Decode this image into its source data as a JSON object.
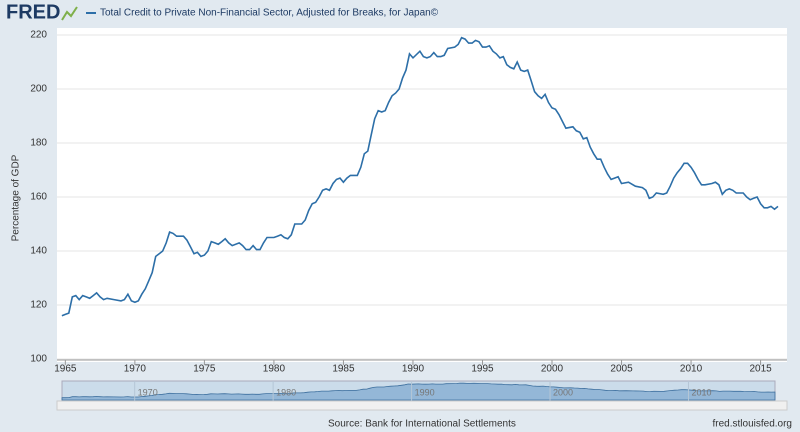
{
  "logo": "FRED",
  "chart_data": {
    "type": "line",
    "ylabel": "Percentage of GDP",
    "source": "Source: Bank for International Settlements",
    "site": "fred.stlouisfed.org",
    "xlim": [
      1964.4,
      2016.9
    ],
    "xticks": [
      1965,
      1970,
      1975,
      1980,
      1985,
      1990,
      1995,
      2000,
      2005,
      2010,
      2015
    ],
    "ylim": [
      100,
      220
    ],
    "yticks": [
      100,
      120,
      140,
      160,
      180,
      200,
      220
    ],
    "grid": true,
    "navigator_ticks": [
      1970,
      1980,
      1990,
      2000,
      2010
    ],
    "series": [
      {
        "name": "Total Credit to Private Non-Financial Sector, Adjusted for Breaks, for Japan©",
        "color": "#2d6fa8",
        "x": [
          1964.75,
          1965,
          1965.25,
          1965.5,
          1965.75,
          1966,
          1966.25,
          1966.5,
          1966.75,
          1967,
          1967.25,
          1967.5,
          1967.75,
          1968,
          1968.5,
          1969,
          1969.25,
          1969.5,
          1969.75,
          1970,
          1970.25,
          1970.5,
          1970.75,
          1971,
          1971.25,
          1971.5,
          1971.75,
          1972,
          1972.25,
          1972.5,
          1972.75,
          1973,
          1973.5,
          1973.75,
          1974,
          1974.25,
          1974.5,
          1974.75,
          1975,
          1975.25,
          1975.5,
          1975.75,
          1976,
          1976.25,
          1976.5,
          1976.75,
          1977,
          1977.5,
          1977.75,
          1978,
          1978.25,
          1978.5,
          1978.75,
          1979,
          1979.25,
          1979.5,
          1980,
          1980.25,
          1980.5,
          1980.75,
          1981,
          1981.25,
          1981.5,
          1982,
          1982.25,
          1982.5,
          1982.75,
          1983,
          1983.25,
          1983.5,
          1983.75,
          1984,
          1984.25,
          1984.5,
          1984.75,
          1985,
          1985.25,
          1985.5,
          1986,
          1986.25,
          1986.5,
          1986.75,
          1987,
          1987.25,
          1987.5,
          1987.75,
          1988,
          1988.25,
          1988.5,
          1988.75,
          1989,
          1989.25,
          1989.5,
          1989.75,
          1990,
          1990.5,
          1990.75,
          1991,
          1991.25,
          1991.5,
          1991.75,
          1992,
          1992.25,
          1992.5,
          1993,
          1993.25,
          1993.5,
          1993.75,
          1994,
          1994.25,
          1994.5,
          1994.75,
          1995,
          1995.25,
          1995.5,
          1995.75,
          1996,
          1996.25,
          1996.5,
          1996.75,
          1997,
          1997.25,
          1997.5,
          1997.75,
          1998,
          1998.25,
          1998.5,
          1998.75,
          1999,
          1999.25,
          1999.5,
          1999.75,
          2000,
          2000.25,
          2000.5,
          2000.75,
          2001,
          2001.5,
          2001.75,
          2002,
          2002.25,
          2002.5,
          2002.75,
          2003,
          2003.25,
          2003.5,
          2003.75,
          2004,
          2004.25,
          2004.5,
          2004.75,
          2005,
          2005.5,
          2006,
          2006.5,
          2006.75,
          2007,
          2007.25,
          2007.5,
          2008,
          2008.25,
          2008.5,
          2008.75,
          2009,
          2009.25,
          2009.5,
          2009.75,
          2010,
          2010.25,
          2010.5,
          2010.75,
          2011,
          2011.5,
          2011.75,
          2012,
          2012.25,
          2012.5,
          2012.75,
          2013,
          2013.25,
          2013.75,
          2014,
          2014.25,
          2014.5,
          2014.75,
          2015,
          2015.25,
          2015.5,
          2015.75,
          2016,
          2016.25
        ],
        "values": [
          116,
          116.5,
          117,
          123,
          123.5,
          122,
          123.5,
          123,
          122.5,
          123.5,
          124.5,
          123,
          122,
          122.5,
          122,
          121.5,
          122,
          124,
          121.5,
          121,
          121.5,
          124,
          126,
          129,
          132,
          138,
          139,
          140,
          143,
          147,
          146.5,
          145.5,
          145.5,
          144,
          141.5,
          139,
          139.5,
          138,
          138.5,
          140,
          143.5,
          143,
          142.5,
          143.5,
          144.5,
          143,
          142,
          143,
          142,
          140.5,
          140.5,
          142,
          140.5,
          140.5,
          143,
          145,
          145,
          145.5,
          146,
          145,
          144.5,
          146,
          150,
          150,
          151.5,
          155,
          157.5,
          158,
          160,
          162.5,
          163,
          162.5,
          165,
          166.5,
          167,
          165.5,
          167,
          168,
          168,
          171,
          176,
          177,
          183,
          189,
          192,
          191.5,
          192,
          195,
          197.5,
          198.5,
          200,
          204,
          207,
          213,
          211.5,
          214,
          212,
          211.5,
          212,
          213.5,
          212,
          212,
          212.5,
          215,
          215.5,
          216.5,
          219,
          218.5,
          217,
          217,
          218,
          217.5,
          215.5,
          215.5,
          216,
          214,
          213,
          211.5,
          212,
          209,
          208,
          207.5,
          210,
          207,
          206.5,
          207,
          203,
          199,
          197.5,
          196.5,
          198,
          195,
          193,
          192.5,
          190.5,
          188,
          185.5,
          186,
          184.5,
          184,
          181.5,
          182,
          178.5,
          176,
          174,
          174,
          171,
          168.5,
          166.5,
          167,
          167.5,
          165,
          165.5,
          164,
          163.5,
          162.5,
          159.5,
          160,
          161.5,
          161,
          161.5,
          164,
          167,
          169,
          170.5,
          172.5,
          172.5,
          171,
          169,
          166.5,
          164.5,
          164.5,
          165,
          165.5,
          164.5,
          161,
          162.5,
          163,
          162.5,
          161.5,
          161.5,
          160,
          159,
          159.5,
          160,
          157.5,
          156,
          156,
          156.5,
          155.5,
          156.5
        ]
      }
    ]
  }
}
